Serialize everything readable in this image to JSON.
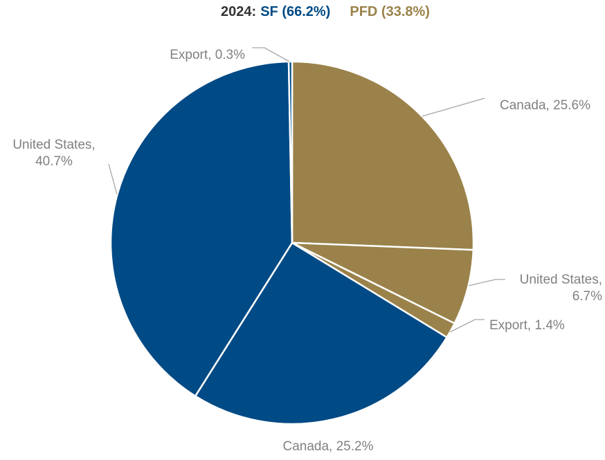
{
  "chart_data": {
    "type": "pie",
    "title_parts": [
      {
        "text": "2024:",
        "color": "#333333"
      },
      {
        "text": "SF (66.2%)",
        "color": "#004a85"
      },
      {
        "text": "PFD (33.8%)",
        "color": "#9a824a"
      }
    ],
    "values": [
      25.6,
      6.7,
      1.4,
      25.2,
      40.7,
      0.3
    ],
    "value_labels": [
      [
        "Canada, 25.6%"
      ],
      [
        "United States,",
        "6.7%"
      ],
      [
        "Export, 1.4%"
      ],
      [
        "Canada, 25.2%"
      ],
      [
        "United States,",
        "40.7%"
      ],
      [
        "Export, 0.3%"
      ]
    ],
    "colors": [
      "#9a824a",
      "#9a824a",
      "#9a824a",
      "#004a85",
      "#004a85",
      "#004a85"
    ]
  }
}
